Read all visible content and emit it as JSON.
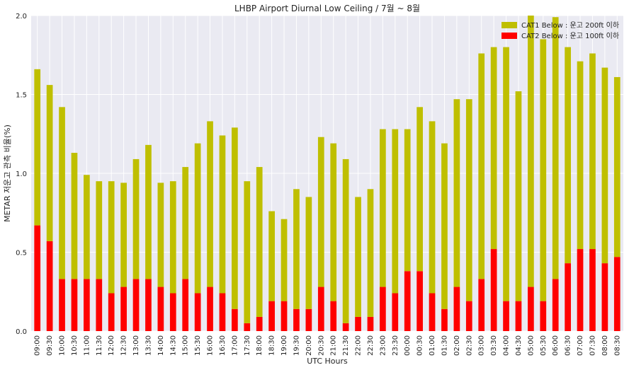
{
  "chart_data": {
    "type": "bar",
    "stacked": true,
    "title": "LHBP Airport Diurnal Low Ceiling / 7월 ~ 8월",
    "xlabel": "UTC Hours",
    "ylabel": "METAR 저운고 관측 비율(%)",
    "ylim": [
      0,
      2.0
    ],
    "yticks": [
      "0.0",
      "0.5",
      "1.0",
      "1.5",
      "2.0"
    ],
    "grid": true,
    "legend_position": "top-right",
    "categories": [
      "09:00",
      "09:30",
      "10:00",
      "10:30",
      "11:00",
      "11:30",
      "12:00",
      "12:30",
      "13:00",
      "13:30",
      "14:00",
      "14:30",
      "15:00",
      "15:30",
      "16:00",
      "16:30",
      "17:00",
      "17:30",
      "18:00",
      "18:30",
      "19:00",
      "19:30",
      "20:00",
      "20:30",
      "21:00",
      "21:30",
      "22:00",
      "22:30",
      "23:00",
      "23:30",
      "00:00",
      "00:30",
      "01:00",
      "01:30",
      "02:00",
      "02:30",
      "03:00",
      "03:30",
      "04:00",
      "04:30",
      "05:00",
      "05:30",
      "06:00",
      "06:30",
      "07:00",
      "07:30",
      "08:00",
      "08:30"
    ],
    "series": [
      {
        "name": "CAT2 Below : 운고 100ft 이하",
        "color": "#ff0000",
        "values": [
          0.67,
          0.57,
          0.33,
          0.33,
          0.33,
          0.33,
          0.24,
          0.28,
          0.33,
          0.33,
          0.28,
          0.24,
          0.33,
          0.24,
          0.28,
          0.24,
          0.14,
          0.05,
          0.09,
          0.19,
          0.19,
          0.14,
          0.14,
          0.28,
          0.19,
          0.05,
          0.09,
          0.09,
          0.28,
          0.24,
          0.38,
          0.38,
          0.24,
          0.14,
          0.28,
          0.19,
          0.33,
          0.52,
          0.19,
          0.19,
          0.28,
          0.19,
          0.33,
          0.43,
          0.52,
          0.52,
          0.43,
          0.47
        ]
      },
      {
        "name": "CAT1 Below : 운고 200ft 이하",
        "color": "#bfbf00",
        "values": [
          0.99,
          0.99,
          1.09,
          0.8,
          0.66,
          0.62,
          0.71,
          0.66,
          0.76,
          0.85,
          0.66,
          0.71,
          0.71,
          0.95,
          1.05,
          1.0,
          1.15,
          0.9,
          0.95,
          0.57,
          0.52,
          0.76,
          0.71,
          0.95,
          1.0,
          1.04,
          0.76,
          0.81,
          1.0,
          1.04,
          0.9,
          1.04,
          1.09,
          1.05,
          1.19,
          1.28,
          1.43,
          1.28,
          1.61,
          1.33,
          1.72,
          1.66,
          1.66,
          1.37,
          1.19,
          1.24,
          1.24,
          1.14
        ]
      }
    ]
  }
}
